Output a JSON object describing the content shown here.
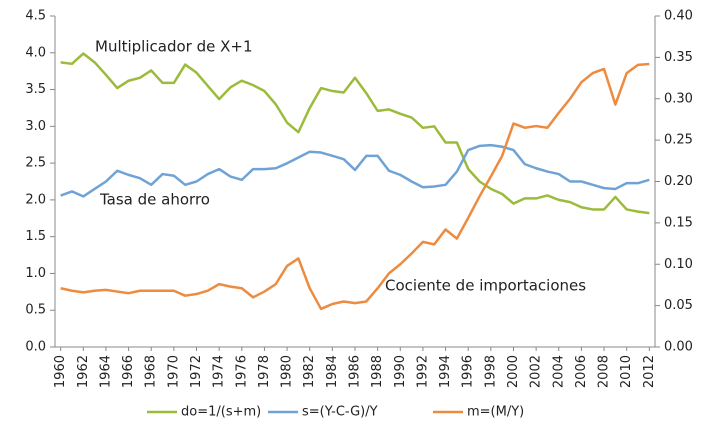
{
  "chart_data": {
    "type": "line",
    "annotations": [
      "Multiplicador de X+1",
      "Tasa de ahorro",
      "Cociente de importaciones"
    ],
    "x": [
      1960,
      1961,
      1962,
      1963,
      1964,
      1965,
      1966,
      1967,
      1968,
      1969,
      1970,
      1971,
      1972,
      1973,
      1974,
      1975,
      1976,
      1977,
      1978,
      1979,
      1980,
      1981,
      1982,
      1983,
      1984,
      1985,
      1986,
      1987,
      1988,
      1989,
      1990,
      1991,
      1992,
      1993,
      1994,
      1995,
      1996,
      1997,
      1998,
      1999,
      2000,
      2001,
      2002,
      2003,
      2004,
      2005,
      2006,
      2007,
      2008,
      2009,
      2010,
      2011,
      2012
    ],
    "xlim": [
      1959.5,
      2012.5
    ],
    "xticks": [
      1960,
      1962,
      1964,
      1966,
      1968,
      1970,
      1972,
      1974,
      1976,
      1978,
      1980,
      1982,
      1984,
      1986,
      1988,
      1990,
      1992,
      1994,
      1996,
      1998,
      2000,
      2002,
      2004,
      2006,
      2008,
      2010,
      2012
    ],
    "ylim": [
      0,
      4.5
    ],
    "yticks": [
      {
        "value": 0,
        "label": "0.0"
      },
      0.5,
      {
        "value": 1,
        "label": "1.0"
      },
      1.5,
      {
        "value": 2,
        "label": "2.0"
      },
      2.5,
      {
        "value": 3,
        "label": "3.0"
      },
      3.5,
      {
        "value": 4,
        "label": "4.0"
      },
      4.5
    ],
    "y2lim": [
      0,
      0.4
    ],
    "y2ticks": [
      {
        "value": 0,
        "label": "0.00"
      },
      0.05,
      {
        "value": 0.1,
        "label": "0.10"
      },
      0.15,
      {
        "value": 0.2,
        "label": "0.20"
      },
      0.25,
      {
        "value": 0.3,
        "label": "0.30"
      },
      0.35,
      {
        "value": 0.4,
        "label": "0.40"
      }
    ],
    "grid": false,
    "legend": "bottom",
    "series": [
      {
        "name": "do=1/(s+m)",
        "color": "#9bbb3b",
        "values": [
          3.87,
          3.85,
          3.99,
          3.87,
          3.7,
          3.52,
          3.62,
          3.66,
          3.76,
          3.59,
          3.59,
          3.84,
          3.73,
          3.55,
          3.37,
          3.53,
          3.62,
          3.56,
          3.48,
          3.3,
          3.05,
          2.92,
          3.25,
          3.52,
          3.48,
          3.46,
          3.66,
          3.45,
          3.21,
          3.23,
          3.17,
          3.12,
          2.98,
          3.0,
          2.78,
          2.78,
          2.42,
          2.25,
          2.15,
          2.08,
          1.95,
          2.02,
          2.02,
          2.06,
          2.0,
          1.97,
          1.9,
          1.87,
          1.87,
          2.04,
          1.87,
          1.84,
          1.82
        ]
      },
      {
        "name": "s=(Y-C-G)/Y",
        "color": "#6fa3d6",
        "axis": "y2",
        "values": [
          0.183,
          0.188,
          0.182,
          0.191,
          0.2,
          0.213,
          0.208,
          0.204,
          0.196,
          0.209,
          0.207,
          0.196,
          0.2,
          0.209,
          0.215,
          0.206,
          0.202,
          0.215,
          0.215,
          0.216,
          0.222,
          0.229,
          0.236,
          0.235,
          0.231,
          0.227,
          0.214,
          0.231,
          0.231,
          0.213,
          0.208,
          0.2,
          0.193,
          0.194,
          0.196,
          0.212,
          0.238,
          0.243,
          0.244,
          0.242,
          0.238,
          0.221,
          0.216,
          0.212,
          0.209,
          0.2,
          0.2,
          0.196,
          0.192,
          0.191,
          0.198,
          0.198,
          0.202
        ]
      },
      {
        "name": "m=(M/Y)",
        "color": "#ed8b3f",
        "axis": "y2",
        "values": [
          0.071,
          0.068,
          0.066,
          0.068,
          0.069,
          0.067,
          0.065,
          0.068,
          0.068,
          0.068,
          0.068,
          0.062,
          0.064,
          0.068,
          0.076,
          0.073,
          0.071,
          0.06,
          0.067,
          0.076,
          0.098,
          0.107,
          0.071,
          0.046,
          0.052,
          0.055,
          0.053,
          0.055,
          0.071,
          0.089,
          0.1,
          0.113,
          0.127,
          0.124,
          0.142,
          0.131,
          0.156,
          0.182,
          0.206,
          0.231,
          0.27,
          0.265,
          0.267,
          0.265,
          0.283,
          0.3,
          0.32,
          0.331,
          0.336,
          0.293,
          0.331,
          0.341,
          0.342
        ]
      }
    ]
  }
}
